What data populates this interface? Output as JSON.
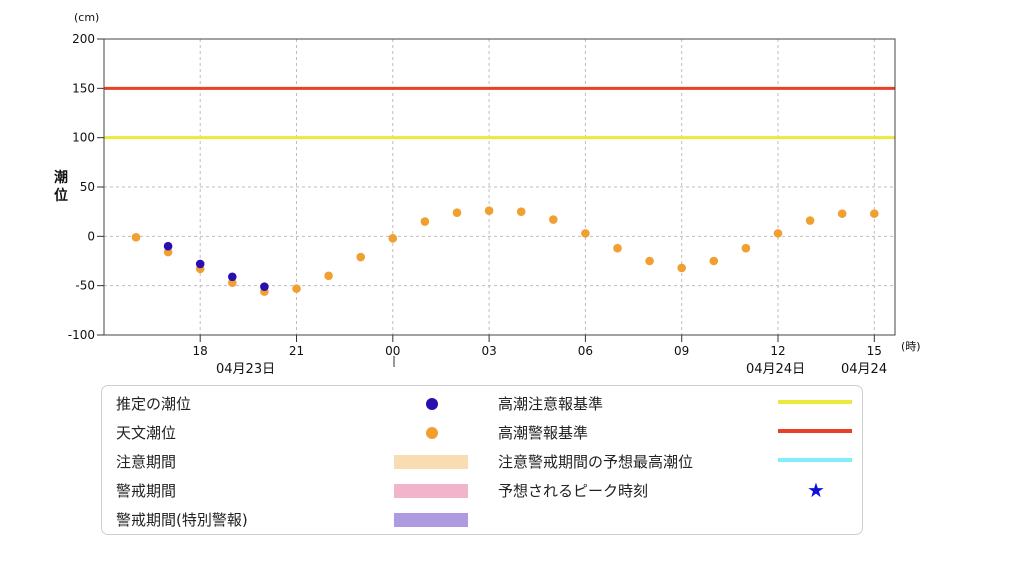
{
  "chart_data": {
    "type": "scatter",
    "y_unit": "(cm)",
    "x_unit": "(時)",
    "ylabel": "潮位",
    "ylim": [
      -100,
      200
    ],
    "y_ticks": [
      "200",
      "150",
      "100",
      "50",
      "0",
      "-50",
      "-100"
    ],
    "x_ticks": [
      "18",
      "21",
      "00",
      "03",
      "06",
      "09",
      "12",
      "15"
    ],
    "date_labels": [
      "04月23日",
      "04月24日",
      "04月24"
    ],
    "grid": true,
    "reference_lines": [
      {
        "name": "高潮警報基準",
        "value": 150,
        "color": "#e8412a"
      },
      {
        "name": "高潮注意報基準",
        "value": 100,
        "color": "#eaea3c"
      }
    ],
    "series": [
      {
        "name": "推定の潮位",
        "color": "#2a0fb0",
        "points": [
          {
            "x": "04-23 17:00",
            "y": -10
          },
          {
            "x": "04-23 18:00",
            "y": -28
          },
          {
            "x": "04-23 19:00",
            "y": -41
          },
          {
            "x": "04-23 20:00",
            "y": -51
          }
        ]
      },
      {
        "name": "天文潮位",
        "color": "#f0a030",
        "points": [
          {
            "x": "04-23 16:00",
            "y": -1
          },
          {
            "x": "04-23 17:00",
            "y": -16
          },
          {
            "x": "04-23 18:00",
            "y": -33
          },
          {
            "x": "04-23 19:00",
            "y": -47
          },
          {
            "x": "04-23 20:00",
            "y": -56
          },
          {
            "x": "04-23 21:00",
            "y": -53
          },
          {
            "x": "04-23 22:00",
            "y": -40
          },
          {
            "x": "04-23 23:00",
            "y": -21
          },
          {
            "x": "04-24 00:00",
            "y": -2
          },
          {
            "x": "04-24 01:00",
            "y": 15
          },
          {
            "x": "04-24 02:00",
            "y": 24
          },
          {
            "x": "04-24 03:00",
            "y": 26
          },
          {
            "x": "04-24 04:00",
            "y": 25
          },
          {
            "x": "04-24 05:00",
            "y": 17
          },
          {
            "x": "04-24 06:00",
            "y": 3
          },
          {
            "x": "04-24 07:00",
            "y": -12
          },
          {
            "x": "04-24 08:00",
            "y": -25
          },
          {
            "x": "04-24 09:00",
            "y": -32
          },
          {
            "x": "04-24 10:00",
            "y": -25
          },
          {
            "x": "04-24 11:00",
            "y": -12
          },
          {
            "x": "04-24 12:00",
            "y": 3
          },
          {
            "x": "04-24 13:00",
            "y": 16
          },
          {
            "x": "04-24 14:00",
            "y": 23
          },
          {
            "x": "04-24 15:00",
            "y": 23
          }
        ]
      }
    ]
  },
  "legend": {
    "estimated_tide": {
      "label": "推定の潮位",
      "color": "#2a0fb0"
    },
    "astronomical_tide": {
      "label": "天文潮位",
      "color": "#f0a030"
    },
    "advisory_period": {
      "label": "注意期間",
      "color": "#f9ddb2"
    },
    "warning_period": {
      "label": "警戒期間",
      "color": "#f2b4cb"
    },
    "special_warning_period": {
      "label": "警戒期間(特別警報)",
      "color": "#ae9ae0"
    },
    "storm_surge_advisory": {
      "label": "高潮注意報基準",
      "color": "#eaea3c"
    },
    "storm_surge_warning": {
      "label": "高潮警報基準",
      "color": "#e8412a"
    },
    "max_predicted_level": {
      "label": "注意警戒期間の予想最高潮位",
      "color": "#7ff0f8"
    },
    "expected_peak_time": {
      "label": "予想されるピーク時刻",
      "color": "#1010dd",
      "icon": "star-icon"
    }
  }
}
